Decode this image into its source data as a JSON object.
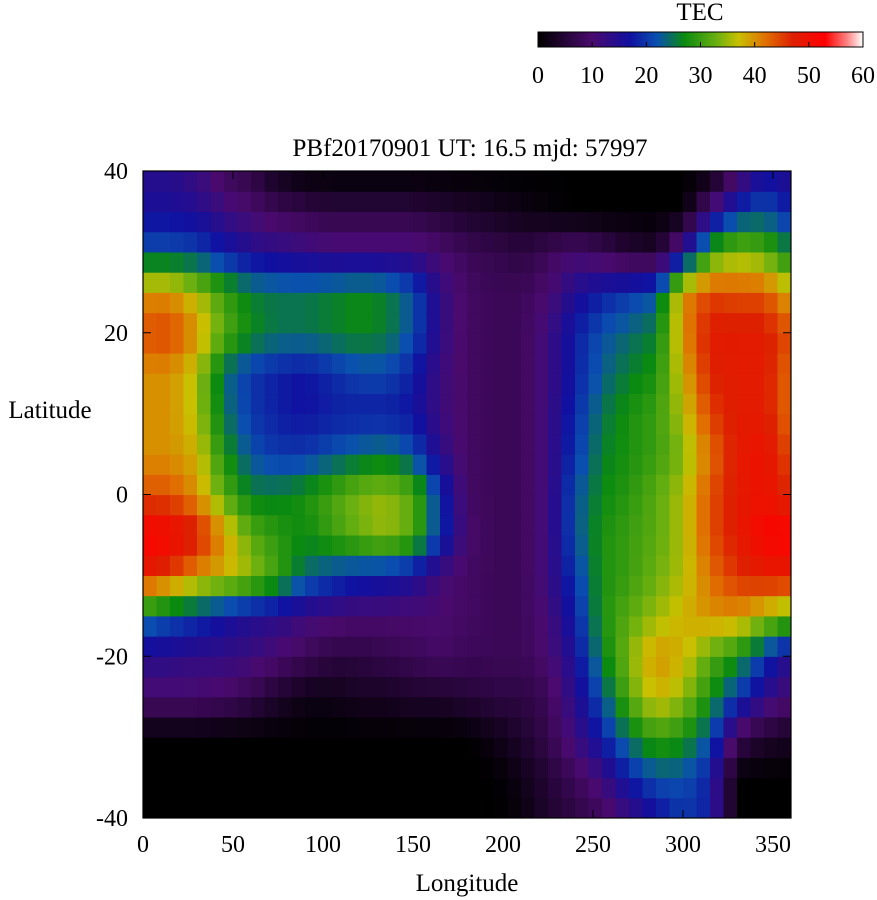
{
  "chart_data": {
    "type": "heatmap",
    "title": "PBf20170901  UT: 16.5  mjd: 57997",
    "xlabel": "Longitude",
    "ylabel": "Latitude",
    "xlim": [
      0,
      360
    ],
    "ylim": [
      -40,
      40
    ],
    "x_ticks": [
      "0",
      "50",
      "100",
      "150",
      "200",
      "250",
      "300",
      "350"
    ],
    "y_ticks": [
      "-40",
      "-20",
      "0",
      "20",
      "40"
    ],
    "grid": false,
    "colorbar": {
      "title": "TEC",
      "range": [
        0,
        60
      ],
      "ticks": [
        "0",
        "10",
        "20",
        "30",
        "40",
        "50",
        "60"
      ],
      "stops": [
        {
          "value": 0,
          "color": "#000000"
        },
        {
          "value": 10,
          "color": "#4a0a6e"
        },
        {
          "value": 17,
          "color": "#1010a0"
        },
        {
          "value": 22,
          "color": "#0a50b0"
        },
        {
          "value": 27,
          "color": "#0a8a10"
        },
        {
          "value": 33,
          "color": "#6ab010"
        },
        {
          "value": 37,
          "color": "#c8c000"
        },
        {
          "value": 42,
          "color": "#e07000"
        },
        {
          "value": 47,
          "color": "#dd2000"
        },
        {
          "value": 53,
          "color": "#ff0000"
        },
        {
          "value": 57,
          "color": "#ff8080"
        },
        {
          "value": 60,
          "color": "#ffffff"
        }
      ]
    },
    "grid_lon": [
      0,
      15,
      30,
      45,
      60,
      75,
      90,
      105,
      120,
      135,
      150,
      165,
      180,
      195,
      210,
      225,
      240,
      255,
      270,
      285,
      300,
      315,
      330,
      345,
      360
    ],
    "grid_lat": [
      -40,
      -35,
      -30,
      -25,
      -20,
      -15,
      -10,
      -5,
      0,
      5,
      10,
      15,
      20,
      25,
      30,
      35,
      40
    ],
    "values": [
      [
        0,
        0,
        0,
        0,
        0,
        0,
        0,
        0,
        0,
        0,
        0,
        0,
        0,
        0,
        1,
        4,
        6,
        8,
        12,
        16,
        20,
        18,
        0,
        0,
        0
      ],
      [
        0,
        0,
        0,
        0,
        0,
        0,
        0,
        0,
        0,
        0,
        0,
        0,
        0,
        0,
        2,
        5,
        8,
        12,
        18,
        22,
        22,
        18,
        0,
        0,
        0
      ],
      [
        0,
        0,
        0,
        0,
        0,
        0,
        0,
        0,
        0,
        0,
        0,
        0,
        0,
        2,
        4,
        7,
        12,
        18,
        25,
        30,
        28,
        22,
        8,
        4,
        3
      ],
      [
        10,
        10,
        10,
        9,
        7,
        4,
        2,
        2,
        3,
        3,
        4,
        4,
        5,
        6,
        6,
        8,
        14,
        22,
        32,
        38,
        35,
        28,
        20,
        14,
        10
      ],
      [
        14,
        14,
        13,
        13,
        12,
        10,
        8,
        6,
        6,
        7,
        8,
        9,
        8,
        8,
        8,
        10,
        16,
        26,
        34,
        40,
        38,
        32,
        28,
        20,
        14
      ],
      [
        25,
        22,
        20,
        17,
        15,
        14,
        12,
        11,
        10,
        10,
        10,
        10,
        9,
        8,
        8,
        11,
        18,
        28,
        32,
        35,
        38,
        40,
        40,
        36,
        32
      ],
      [
        48,
        45,
        40,
        38,
        35,
        30,
        24,
        21,
        19,
        18,
        16,
        11,
        9,
        8,
        8,
        12,
        20,
        28,
        30,
        33,
        36,
        42,
        46,
        48,
        48
      ],
      [
        53,
        52,
        48,
        40,
        32,
        29,
        27,
        30,
        33,
        35,
        32,
        20,
        10,
        8,
        8,
        12,
        22,
        28,
        30,
        32,
        36,
        44,
        48,
        52,
        53
      ],
      [
        44,
        44,
        40,
        32,
        26,
        26,
        28,
        31,
        34,
        35,
        32,
        20,
        9,
        8,
        8,
        12,
        22,
        27,
        29,
        32,
        36,
        44,
        48,
        50,
        46
      ],
      [
        40,
        40,
        38,
        28,
        22,
        20,
        20,
        22,
        24,
        25,
        22,
        14,
        9,
        8,
        8,
        12,
        20,
        26,
        28,
        30,
        34,
        42,
        48,
        50,
        44
      ],
      [
        40,
        40,
        36,
        25,
        20,
        18,
        17,
        18,
        18,
        18,
        17,
        12,
        9,
        8,
        8,
        12,
        19,
        25,
        28,
        30,
        36,
        45,
        48,
        48,
        42
      ],
      [
        40,
        40,
        36,
        24,
        20,
        18,
        17,
        19,
        21,
        21,
        18,
        12,
        9,
        8,
        8,
        12,
        18,
        23,
        26,
        28,
        38,
        47,
        48,
        48,
        42
      ],
      [
        44,
        45,
        40,
        32,
        27,
        25,
        25,
        26,
        27,
        26,
        22,
        13,
        9,
        8,
        8,
        12,
        18,
        22,
        24,
        26,
        40,
        48,
        48,
        48,
        44
      ],
      [
        40,
        40,
        36,
        30,
        26,
        25,
        25,
        26,
        27,
        26,
        22,
        13,
        9,
        8,
        8,
        10,
        15,
        18,
        20,
        22,
        40,
        45,
        44,
        44,
        38
      ],
      [
        22,
        22,
        21,
        18,
        15,
        14,
        13,
        12,
        12,
        12,
        12,
        10,
        8,
        7,
        6,
        8,
        10,
        8,
        5,
        4,
        15,
        30,
        34,
        32,
        26
      ],
      [
        16,
        16,
        15,
        12,
        10,
        8,
        7,
        6,
        6,
        6,
        6,
        5,
        4,
        3,
        2,
        1,
        0,
        0,
        0,
        0,
        0,
        12,
        20,
        22,
        18
      ],
      [
        14,
        14,
        12,
        8,
        6,
        2,
        0,
        0,
        0,
        0,
        0,
        0,
        0,
        0,
        0,
        0,
        0,
        0,
        0,
        0,
        0,
        0,
        8,
        16,
        14
      ]
    ]
  }
}
